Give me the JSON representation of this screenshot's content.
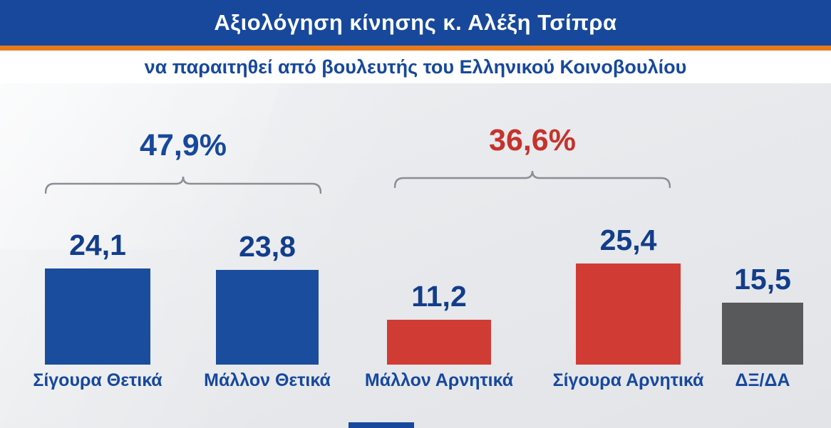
{
  "header": {
    "title": "Αξιολόγηση κίνησης κ. Αλέξη Τσίπρα",
    "subtitle": "να παραιτηθεί από βουλευτής του Ελληνικού Κοινοβουλίου"
  },
  "chart_data": {
    "type": "bar",
    "title": "Αξιολόγηση κίνησης κ. Αλέξη Τσίπρα",
    "subtitle": "να παραιτηθεί από βουλευτής του Ελληνικού Κοινοβουλίου",
    "categories": [
      "Σίγουρα Θετικά",
      "Μάλλον Θετικά",
      "Μάλλον Αρνητικά",
      "Σίγουρα Αρνητικά",
      "ΔΞ/ΔΑ"
    ],
    "values": [
      24.1,
      23.8,
      11.2,
      25.4,
      15.5
    ],
    "value_labels": [
      "24,1",
      "23,8",
      "11,2",
      "25,4",
      "15,5"
    ],
    "bar_colors": [
      "#1b4d9e",
      "#1b4d9e",
      "#d03c34",
      "#d03c34",
      "#58595b"
    ],
    "groups": [
      {
        "label": "47,9%",
        "color": "#17489c",
        "from": 0,
        "to": 1
      },
      {
        "label": "36,6%",
        "color": "#c5332b",
        "from": 2,
        "to": 3
      }
    ],
    "ylim": [
      0,
      28
    ],
    "xlabel": "",
    "ylabel": "",
    "grid": false,
    "legend": false
  },
  "colors": {
    "header_bg": "#17489c",
    "accent_orange": "#e87a1e",
    "subtitle_text": "#17489c",
    "value_label": "#133d8b",
    "category_label": "#17489c",
    "positive_bar": "#1b4d9e",
    "negative_bar": "#d03c34",
    "neutral_bar": "#58595b",
    "group_positive": "#17489c",
    "group_negative": "#c5332b",
    "brace_stroke": "#8a8e95",
    "bottom_accent": "#17489c"
  }
}
